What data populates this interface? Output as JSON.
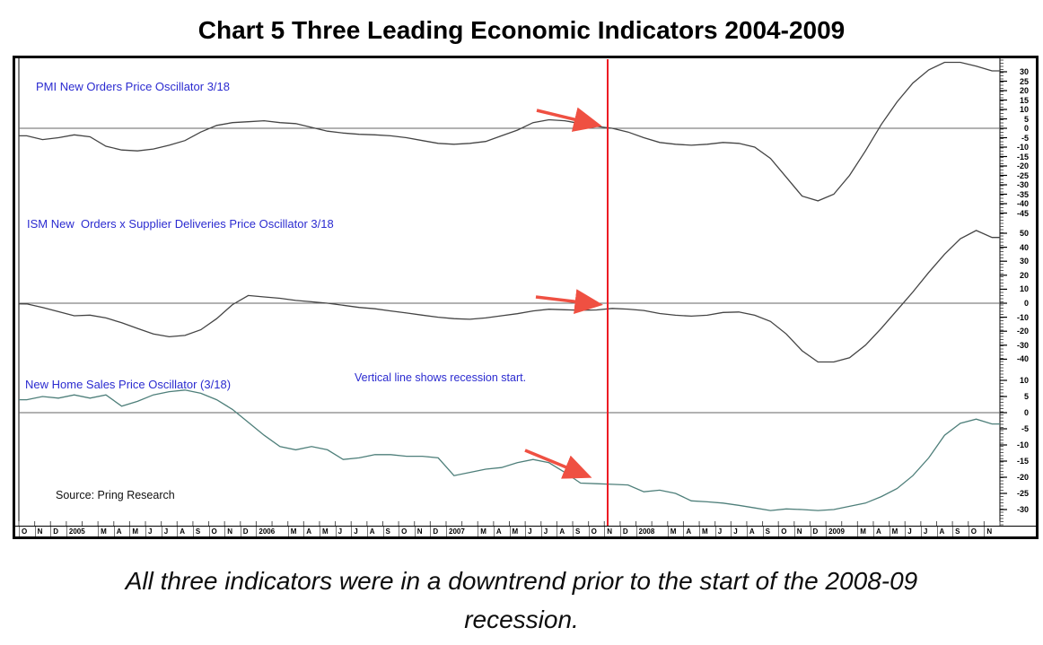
{
  "title": "Chart 5 Three Leading Economic Indicators 2004-2009",
  "note": "Vertical line shows recession start.",
  "source": "Source: Pring Research",
  "caption": {
    "line1": "All three indicators were in a downtrend prior to the start of the 2008-09",
    "line2": "recession."
  },
  "colors": {
    "label_blue": "#2b2bd0",
    "recession_line_red": "#ed1c24",
    "arrow_red": "#ef5042",
    "series_dark": "#444444",
    "series_teal": "#4e7f7a",
    "zero_line_gray": "#666666"
  },
  "chart_data": {
    "type": "line",
    "title": "Chart 5 Three Leading Economic Indicators 2004-2009",
    "x_axis_label_cells": [
      "O",
      "N",
      "D",
      "2005",
      "M",
      "A",
      "M",
      "J",
      "J",
      "A",
      "S",
      "O",
      "N",
      "D",
      "2006",
      "M",
      "A",
      "M",
      "J",
      "J",
      "A",
      "S",
      "O",
      "N",
      "D",
      "2007",
      "M",
      "A",
      "M",
      "J",
      "J",
      "A",
      "S",
      "O",
      "N",
      "D",
      "2008",
      "M",
      "A",
      "M",
      "J",
      "J",
      "A",
      "S",
      "O",
      "N",
      "D",
      "2009",
      "M",
      "A",
      "M",
      "J",
      "J",
      "A",
      "S",
      "O",
      "N"
    ],
    "months": [
      "Oct-04",
      "Nov-04",
      "Dec-04",
      "Jan-05",
      "Feb-05",
      "Mar-05",
      "Apr-05",
      "May-05",
      "Jun-05",
      "Jul-05",
      "Aug-05",
      "Sep-05",
      "Oct-05",
      "Nov-05",
      "Dec-05",
      "Jan-06",
      "Feb-06",
      "Mar-06",
      "Apr-06",
      "May-06",
      "Jun-06",
      "Jul-06",
      "Aug-06",
      "Sep-06",
      "Oct-06",
      "Nov-06",
      "Dec-06",
      "Jan-07",
      "Feb-07",
      "Mar-07",
      "Apr-07",
      "May-07",
      "Jun-07",
      "Jul-07",
      "Aug-07",
      "Sep-07",
      "Oct-07",
      "Nov-07",
      "Dec-07",
      "Jan-08",
      "Feb-08",
      "Mar-08",
      "Apr-08",
      "May-08",
      "Jun-08",
      "Jul-08",
      "Aug-08",
      "Sep-08",
      "Oct-08",
      "Nov-08",
      "Dec-08",
      "Jan-09",
      "Feb-09",
      "Mar-09",
      "Apr-09",
      "May-09",
      "Jun-09",
      "Jul-09",
      "Aug-09",
      "Sep-09",
      "Oct-09",
      "Nov-09"
    ],
    "recession_start": "Dec-2007",
    "grid": false,
    "legend": false,
    "axis_side": "right",
    "panels": [
      {
        "name": "pmi",
        "label": "PMI New Orders Price Oscillator 3/18",
        "ticks": [
          30,
          25,
          20,
          15,
          10,
          5,
          0,
          -5,
          -10,
          -15,
          -20,
          -25,
          -30,
          -35,
          -40,
          -45
        ],
        "ylim": [
          -45,
          30
        ],
        "values": [
          -4,
          -6,
          -5,
          -3.5,
          -4.5,
          -9.5,
          -11.5,
          -12,
          -11,
          -9,
          -6.5,
          -2,
          1.5,
          3,
          3.5,
          4,
          3,
          2.5,
          0.5,
          -1.5,
          -2.5,
          -3.2,
          -3.5,
          -4,
          -5,
          -6.5,
          -8,
          -8.5,
          -8,
          -7,
          -4,
          -1,
          3,
          4.5,
          4,
          2.5,
          1,
          0,
          -2,
          -5,
          -7.5,
          -8.5,
          -9,
          -8.5,
          -7.5,
          -8,
          -10,
          -16,
          -26,
          -36,
          -38.5,
          -35,
          -25,
          -12,
          2,
          14,
          24,
          31,
          35,
          35,
          33,
          30.5
        ]
      },
      {
        "name": "ism",
        "label": "ISM New  Orders x Supplier Deliveries Price Oscillator 3/18",
        "ticks": [
          50,
          40,
          30,
          20,
          10,
          0,
          -10,
          -20,
          -30,
          -40
        ],
        "ylim": [
          -45,
          55
        ],
        "values": [
          -0.5,
          -3,
          -6,
          -9,
          -8.5,
          -10.5,
          -14,
          -18,
          -22,
          -24,
          -23,
          -19,
          -11,
          -1,
          5.5,
          4.5,
          3.5,
          2,
          1,
          0,
          -1.5,
          -3,
          -4,
          -5.5,
          -7,
          -8.5,
          -10,
          -11,
          -11.5,
          -10.5,
          -9,
          -7.5,
          -5.5,
          -4.3,
          -4.7,
          -5,
          -4.8,
          -3.7,
          -4.2,
          -5.2,
          -7.4,
          -8.6,
          -9.2,
          -8.6,
          -6.6,
          -6.3,
          -8.6,
          -13,
          -22,
          -34,
          -42,
          -42,
          -39,
          -30,
          -18,
          -5,
          8,
          22,
          35,
          46,
          52,
          47
        ]
      },
      {
        "name": "nhs",
        "label": "New Home Sales Price Oscillator (3/18)",
        "ticks": [
          10,
          5,
          0,
          -5,
          -10,
          -15,
          -20,
          -25,
          -30
        ],
        "ylim": [
          -32,
          12
        ],
        "values": [
          4,
          5,
          4.5,
          5.5,
          4.5,
          5.5,
          2,
          3.5,
          5.5,
          6.5,
          7,
          6,
          4,
          1,
          -3,
          -7,
          -10.5,
          -11.5,
          -10.5,
          -11.5,
          -14.5,
          -14,
          -13,
          -13,
          -13.5,
          -13.5,
          -14,
          -19.5,
          -18.5,
          -17.5,
          -17,
          -15.5,
          -14.5,
          -15.5,
          -18.5,
          -21.8,
          -22,
          -22.2,
          -22.4,
          -24.5,
          -24,
          -25,
          -27.3,
          -27.6,
          -28,
          -28.7,
          -29.5,
          -30.3,
          -29.8,
          -30,
          -30.3,
          -30,
          -29,
          -28,
          -26,
          -23.5,
          -19.5,
          -14,
          -7,
          -3.3,
          -2,
          -3.5
        ]
      }
    ]
  }
}
